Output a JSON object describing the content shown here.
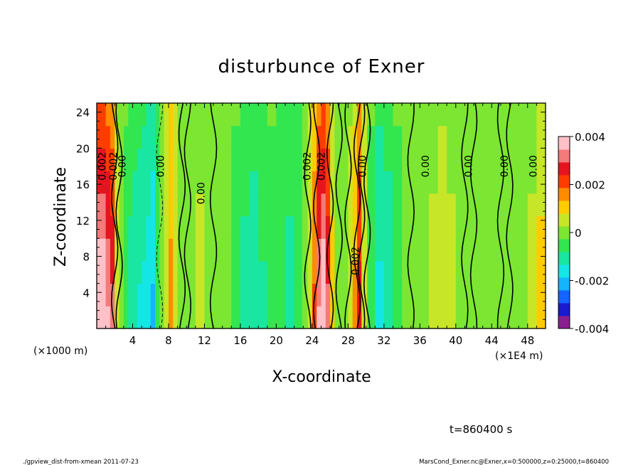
{
  "chart_data": {
    "type": "heatmap",
    "title": "disturbunce of Exner",
    "xlabel": "X-coordinate",
    "ylabel": "Z-coordinate",
    "x_unit": "(×1E4 m)",
    "y_unit": "(×1000 m)",
    "xlim": [
      0,
      50
    ],
    "ylim": [
      0,
      25
    ],
    "x_ticks": [
      4,
      8,
      12,
      16,
      20,
      24,
      28,
      32,
      36,
      40,
      44,
      48
    ],
    "y_ticks": [
      4,
      8,
      12,
      16,
      20,
      24
    ],
    "colorbar": {
      "min": -0.004,
      "max": 0.004,
      "ticks": [
        {
          "value": 0.004,
          "label": "0.004"
        },
        {
          "value": 0.002,
          "label": "0.002"
        },
        {
          "value": 0,
          "label": "0"
        },
        {
          "value": -0.002,
          "label": "-0.002"
        },
        {
          "value": -0.004,
          "label": "-0.004"
        }
      ],
      "colors": [
        "#8a1f8f",
        "#1a1ad0",
        "#1464ff",
        "#14b4ff",
        "#14e6e6",
        "#19e6a0",
        "#32e650",
        "#7ce632",
        "#c8e628",
        "#ffcc00",
        "#ff8c00",
        "#ff3c00",
        "#e6141e",
        "#f57a7a",
        "#ffc0c8"
      ]
    },
    "columns": [
      {
        "x": 0.75,
        "value": 0.0032
      },
      {
        "x": 1.25,
        "value": 0.0028
      },
      {
        "x": 1.75,
        "value": 0.0024
      },
      {
        "x": 2.25,
        "value": 0.0004
      },
      {
        "x": 2.75,
        "value": 0.0
      },
      {
        "x": 3.25,
        "value": -0.0004
      },
      {
        "x": 3.75,
        "value": -0.0008
      },
      {
        "x": 4.25,
        "value": -0.001
      },
      {
        "x": 4.75,
        "value": -0.0011
      },
      {
        "x": 5.25,
        "value": -0.0012
      },
      {
        "x": 5.75,
        "value": -0.0014
      },
      {
        "x": 6.25,
        "value": -0.0016
      },
      {
        "x": 6.75,
        "value": -0.0006
      },
      {
        "x": 7.25,
        "value": 0.0002
      },
      {
        "x": 7.75,
        "value": 0.0006
      },
      {
        "x": 8.25,
        "value": 0.0013
      },
      {
        "x": 8.75,
        "value": 0.0006
      },
      {
        "x": 9.25,
        "value": 0.0002
      },
      {
        "x": 9.75,
        "value": 0.0
      },
      {
        "x": 10.5,
        "value": 0.0001
      },
      {
        "x": 11.5,
        "value": 0.0003
      },
      {
        "x": 12.5,
        "value": 0.0001
      },
      {
        "x": 13.5,
        "value": 0.0
      },
      {
        "x": 14.5,
        "value": -0.0002
      },
      {
        "x": 15.5,
        "value": -0.0004
      },
      {
        "x": 16.5,
        "value": -0.0008
      },
      {
        "x": 17.5,
        "value": -0.001
      },
      {
        "x": 18.5,
        "value": -0.0007
      },
      {
        "x": 19.5,
        "value": -0.0004
      },
      {
        "x": 20.5,
        "value": -0.0006
      },
      {
        "x": 21.5,
        "value": -0.0008
      },
      {
        "x": 22.5,
        "value": -0.0005
      },
      {
        "x": 23.25,
        "value": 0.0
      },
      {
        "x": 23.75,
        "value": 0.0006
      },
      {
        "x": 24.25,
        "value": 0.0016
      },
      {
        "x": 24.75,
        "value": 0.0028
      },
      {
        "x": 25.25,
        "value": 0.0032
      },
      {
        "x": 25.75,
        "value": 0.0024
      },
      {
        "x": 26.25,
        "value": 0.0008
      },
      {
        "x": 26.75,
        "value": 0.0002
      },
      {
        "x": 27.25,
        "value": 0.0
      },
      {
        "x": 27.75,
        "value": -0.0002
      },
      {
        "x": 28.25,
        "value": 0.0004
      },
      {
        "x": 28.75,
        "value": 0.0012
      },
      {
        "x": 29.25,
        "value": 0.0022
      },
      {
        "x": 29.75,
        "value": 0.0006
      },
      {
        "x": 30.5,
        "value": -0.0004
      },
      {
        "x": 31.5,
        "value": -0.0012
      },
      {
        "x": 32.5,
        "value": -0.001
      },
      {
        "x": 33.5,
        "value": -0.0004
      },
      {
        "x": 34.5,
        "value": 0.0
      },
      {
        "x": 35.5,
        "value": 0.0001
      },
      {
        "x": 36.5,
        "value": 0.0002
      },
      {
        "x": 37.5,
        "value": 0.0003
      },
      {
        "x": 38.5,
        "value": 0.0004
      },
      {
        "x": 39.5,
        "value": 0.0003
      },
      {
        "x": 40.5,
        "value": 0.0001
      },
      {
        "x": 41.5,
        "value": 0.0
      },
      {
        "x": 42.5,
        "value": 0.0001
      },
      {
        "x": 43.5,
        "value": 0.0002
      },
      {
        "x": 44.5,
        "value": 0.0001
      },
      {
        "x": 45.5,
        "value": 0.0
      },
      {
        "x": 46.5,
        "value": 0.0001
      },
      {
        "x": 47.5,
        "value": 0.0002
      },
      {
        "x": 48.5,
        "value": 0.0003
      },
      {
        "x": 49.5,
        "value": 0.0008
      }
    ],
    "contour_labels": [
      {
        "x": 1.0,
        "y": 18,
        "text": "0.002"
      },
      {
        "x": 2.2,
        "y": 18,
        "text": "0.002"
      },
      {
        "x": 3.2,
        "y": 18,
        "text": "0.00"
      },
      {
        "x": 7.5,
        "y": 18,
        "text": "0.00"
      },
      {
        "x": 12.0,
        "y": 15,
        "text": "0.00"
      },
      {
        "x": 23.8,
        "y": 18,
        "text": "0.002"
      },
      {
        "x": 25.4,
        "y": 18,
        "text": "0.002"
      },
      {
        "x": 30.0,
        "y": 18,
        "text": "0.00"
      },
      {
        "x": 29.2,
        "y": 7.5,
        "text": "0.002"
      },
      {
        "x": 37.0,
        "y": 18,
        "text": "0.00"
      },
      {
        "x": 41.8,
        "y": 18,
        "text": "0.00"
      },
      {
        "x": 45.8,
        "y": 18,
        "text": "0.00"
      },
      {
        "x": 49.0,
        "y": 18,
        "text": "0.00"
      }
    ]
  },
  "annotation": "t=860400  s",
  "footer": {
    "left": "./gpview_dist-from-xmean   2011-07-23",
    "right": "MarsCond_Exner.nc@Exner,x=0:500000,z=0:25000,t=860400"
  }
}
